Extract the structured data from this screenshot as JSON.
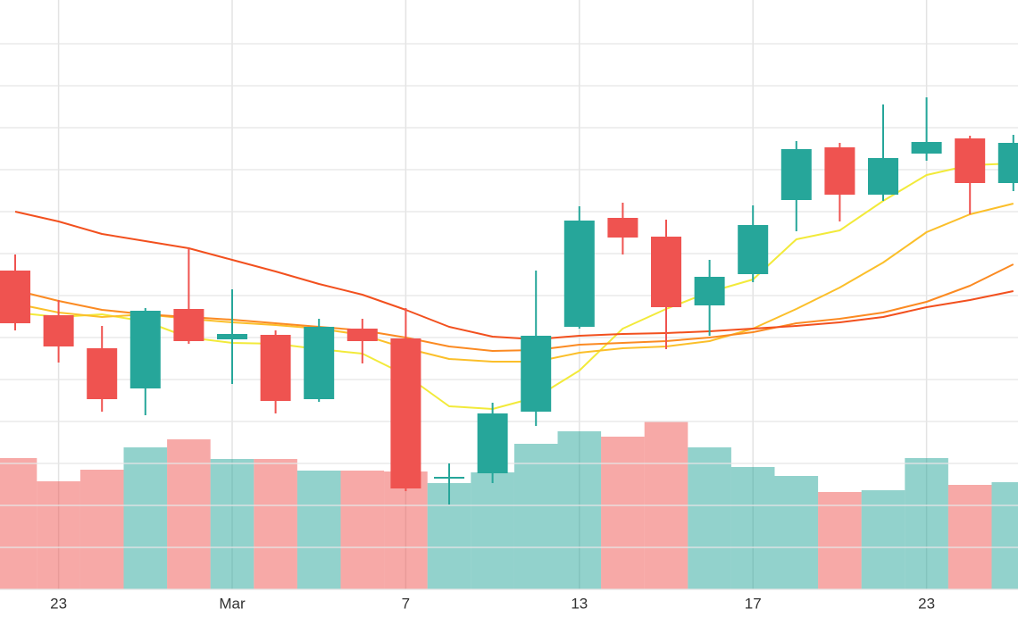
{
  "chart_data": {
    "type": "candlestick",
    "categories": [
      null,
      "23",
      null,
      null,
      null,
      "Mar",
      null,
      null,
      null,
      "7",
      null,
      null,
      null,
      "13",
      null,
      null,
      null,
      "17",
      null,
      null,
      null,
      "23",
      null,
      null
    ],
    "open": [
      357,
      307,
      270,
      225,
      314,
      280,
      285,
      213,
      292,
      281,
      124,
      130,
      199,
      294,
      416,
      395,
      318,
      353,
      436,
      495,
      442,
      488,
      505,
      455
    ],
    "high": [
      375,
      324,
      295,
      315,
      382,
      336,
      290,
      303,
      303,
      315,
      141,
      209,
      357,
      429,
      433,
      414,
      369,
      430,
      502,
      500,
      543,
      551,
      508,
      509
    ],
    "low": [
      290,
      254,
      199,
      195,
      275,
      230,
      197,
      210,
      253,
      110,
      95,
      119,
      183,
      292,
      375,
      269,
      284,
      344,
      401,
      412,
      435,
      480,
      420,
      446
    ],
    "close": [
      298,
      272,
      213,
      312,
      278,
      286,
      211,
      294,
      278,
      113,
      126,
      197,
      284,
      413,
      394,
      316,
      350,
      408,
      493,
      442,
      483,
      501,
      455,
      500
    ],
    "up_color": "#26a69a",
    "down_color": "#ef5350",
    "volume": [
      147,
      121,
      134,
      159,
      168,
      146,
      146,
      133,
      133,
      132,
      119,
      131,
      163,
      177,
      171,
      188,
      159,
      137,
      127,
      109,
      111,
      147,
      117,
      120
    ],
    "series": [
      {
        "color": "#f2ea3a",
        "values": [
          310,
          305,
          308,
          300,
          282,
          276,
          275,
          269,
          264,
          240,
          205,
          202,
          215,
          245,
          292,
          314,
          333,
          347,
          392,
          402,
          435,
          464,
          475,
          477
        ]
      },
      {
        "color": "#fbbf2a",
        "values": [
          320,
          310,
          305,
          308,
          303,
          299,
          296,
          292,
          285,
          270,
          258,
          255,
          255,
          265,
          270,
          272,
          278,
          292,
          314,
          338,
          366,
          400,
          420,
          432
        ]
      },
      {
        "color": "#fb8a22",
        "values": [
          335,
          323,
          313,
          308,
          305,
          302,
          298,
          294,
          290,
          282,
          272,
          267,
          268,
          274,
          276,
          278,
          282,
          288,
          298,
          303,
          310,
          322,
          340,
          364
        ]
      },
      {
        "color": "#f2501e",
        "values": [
          423,
          412,
          398,
          390,
          382,
          369,
          356,
          342,
          330,
          313,
          294,
          283,
          280,
          284,
          286,
          287,
          289,
          292,
          295,
          299,
          305,
          316,
          324,
          334
        ]
      }
    ],
    "ylim": [
      0,
      660
    ],
    "yticks": [
      0,
      47,
      94,
      141,
      188,
      235,
      282,
      329,
      376,
      423,
      470,
      517,
      564,
      611
    ],
    "y2lim": [
      0,
      660
    ],
    "grid": true
  }
}
